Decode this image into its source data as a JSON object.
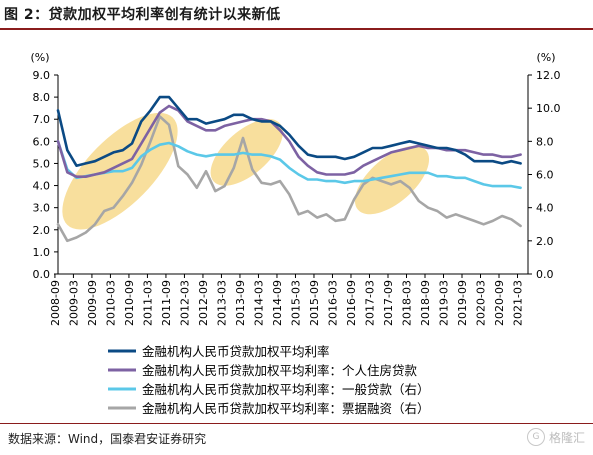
{
  "title": "图 2：贷款加权平均利率创有统计以来新低",
  "source": "数据来源：Wind，国泰君安证券研究",
  "watermark": {
    "brand": "格隆汇",
    "logo_letter": "G"
  },
  "colors": {
    "s1": "#0b4a84",
    "s2": "#7d62a3",
    "s3": "#5bc8e8",
    "s4": "#a6a6a6",
    "highlight": "#f6d47c",
    "title_rule": "#8a1c1c"
  },
  "chart_data": {
    "type": "line",
    "left_axis": {
      "unit_label": "(%)",
      "ylim": [
        0,
        9
      ],
      "ticks": [
        "0.0",
        "1.0",
        "2.0",
        "3.0",
        "4.0",
        "5.0",
        "6.0",
        "7.0",
        "8.0",
        "9.0"
      ]
    },
    "right_axis": {
      "unit_label": "(%)",
      "ylim": [
        0,
        12
      ],
      "ticks": [
        "0.0",
        "2.0",
        "4.0",
        "6.0",
        "8.0",
        "10.0",
        "12.0"
      ]
    },
    "x_ticks": [
      "2008-09",
      "2009-03",
      "2009-09",
      "2010-03",
      "2010-09",
      "2011-03",
      "2011-09",
      "2012-03",
      "2012-09",
      "2013-03",
      "2013-09",
      "2014-03",
      "2014-09",
      "2015-03",
      "2015-09",
      "2016-03",
      "2016-09",
      "2017-03",
      "2017-09",
      "2018-03",
      "2018-09",
      "2019-03",
      "2019-09",
      "2020-03",
      "2020-09",
      "2021-03"
    ],
    "legend_position": "bottom",
    "series": [
      {
        "name": "金融机构人民币贷款加权平均利率",
        "axis": "left",
        "color": "#0b4a84",
        "values": [
          [
            2008.75,
            7.4
          ],
          [
            2009.0,
            5.6
          ],
          [
            2009.25,
            4.9
          ],
          [
            2009.5,
            5.0
          ],
          [
            2009.75,
            5.1
          ],
          [
            2010.0,
            5.3
          ],
          [
            2010.25,
            5.5
          ],
          [
            2010.5,
            5.6
          ],
          [
            2010.75,
            5.9
          ],
          [
            2011.0,
            6.9
          ],
          [
            2011.25,
            7.4
          ],
          [
            2011.5,
            8.0
          ],
          [
            2011.75,
            8.0
          ],
          [
            2012.0,
            7.5
          ],
          [
            2012.25,
            7.0
          ],
          [
            2012.5,
            7.0
          ],
          [
            2012.75,
            6.8
          ],
          [
            2013.0,
            6.9
          ],
          [
            2013.25,
            7.0
          ],
          [
            2013.5,
            7.2
          ],
          [
            2013.75,
            7.2
          ],
          [
            2014.0,
            7.0
          ],
          [
            2014.25,
            6.9
          ],
          [
            2014.5,
            6.9
          ],
          [
            2014.75,
            6.7
          ],
          [
            2015.0,
            6.3
          ],
          [
            2015.25,
            5.8
          ],
          [
            2015.5,
            5.4
          ],
          [
            2015.75,
            5.3
          ],
          [
            2016.0,
            5.3
          ],
          [
            2016.25,
            5.3
          ],
          [
            2016.5,
            5.2
          ],
          [
            2016.75,
            5.3
          ],
          [
            2017.0,
            5.5
          ],
          [
            2017.25,
            5.7
          ],
          [
            2017.5,
            5.7
          ],
          [
            2017.75,
            5.8
          ],
          [
            2018.0,
            5.9
          ],
          [
            2018.25,
            6.0
          ],
          [
            2018.5,
            5.9
          ],
          [
            2018.75,
            5.8
          ],
          [
            2019.0,
            5.7
          ],
          [
            2019.25,
            5.7
          ],
          [
            2019.5,
            5.6
          ],
          [
            2019.75,
            5.4
          ],
          [
            2020.0,
            5.1
          ],
          [
            2020.25,
            5.1
          ],
          [
            2020.5,
            5.1
          ],
          [
            2020.75,
            5.0
          ],
          [
            2021.0,
            5.1
          ],
          [
            2021.25,
            5.0
          ]
        ]
      },
      {
        "name": "金融机构人民币贷款加权平均利率：个人住房贷款",
        "axis": "left",
        "color": "#7d62a3",
        "values": [
          [
            2008.75,
            6.0
          ],
          [
            2009.0,
            4.6
          ],
          [
            2009.25,
            4.4
          ],
          [
            2009.5,
            4.4
          ],
          [
            2009.75,
            4.5
          ],
          [
            2010.0,
            4.6
          ],
          [
            2010.25,
            4.8
          ],
          [
            2010.5,
            5.0
          ],
          [
            2010.75,
            5.2
          ],
          [
            2011.0,
            5.9
          ],
          [
            2011.25,
            6.6
          ],
          [
            2011.5,
            7.3
          ],
          [
            2011.75,
            7.6
          ],
          [
            2012.0,
            7.4
          ],
          [
            2012.25,
            6.9
          ],
          [
            2012.5,
            6.7
          ],
          [
            2012.75,
            6.5
          ],
          [
            2013.0,
            6.5
          ],
          [
            2013.25,
            6.7
          ],
          [
            2013.5,
            6.8
          ],
          [
            2013.75,
            6.9
          ],
          [
            2014.0,
            7.0
          ],
          [
            2014.25,
            7.0
          ],
          [
            2014.5,
            6.9
          ],
          [
            2014.75,
            6.5
          ],
          [
            2015.0,
            6.0
          ],
          [
            2015.25,
            5.3
          ],
          [
            2015.5,
            4.9
          ],
          [
            2015.75,
            4.6
          ],
          [
            2016.0,
            4.5
          ],
          [
            2016.25,
            4.5
          ],
          [
            2016.5,
            4.5
          ],
          [
            2016.75,
            4.6
          ],
          [
            2017.0,
            4.9
          ],
          [
            2017.25,
            5.1
          ],
          [
            2017.5,
            5.3
          ],
          [
            2017.75,
            5.5
          ],
          [
            2018.0,
            5.6
          ],
          [
            2018.25,
            5.7
          ],
          [
            2018.5,
            5.8
          ],
          [
            2018.75,
            5.7
          ],
          [
            2019.0,
            5.7
          ],
          [
            2019.25,
            5.6
          ],
          [
            2019.5,
            5.6
          ],
          [
            2019.75,
            5.6
          ],
          [
            2020.0,
            5.5
          ],
          [
            2020.25,
            5.4
          ],
          [
            2020.5,
            5.4
          ],
          [
            2020.75,
            5.3
          ],
          [
            2021.0,
            5.3
          ],
          [
            2021.25,
            5.4
          ]
        ]
      },
      {
        "name": "金融机构人民币贷款加权平均利率：一般贷款（右）",
        "axis": "right",
        "color": "#5bc8e8",
        "values": [
          [
            2008.75,
            8.0
          ],
          [
            2009.0,
            6.3
          ],
          [
            2009.25,
            5.8
          ],
          [
            2009.5,
            5.9
          ],
          [
            2009.75,
            6.0
          ],
          [
            2010.0,
            6.1
          ],
          [
            2010.25,
            6.2
          ],
          [
            2010.5,
            6.2
          ],
          [
            2010.75,
            6.4
          ],
          [
            2011.0,
            7.1
          ],
          [
            2011.25,
            7.5
          ],
          [
            2011.5,
            7.8
          ],
          [
            2011.75,
            7.9
          ],
          [
            2012.0,
            7.7
          ],
          [
            2012.25,
            7.4
          ],
          [
            2012.5,
            7.2
          ],
          [
            2012.75,
            7.1
          ],
          [
            2013.0,
            7.2
          ],
          [
            2013.25,
            7.2
          ],
          [
            2013.5,
            7.2
          ],
          [
            2013.75,
            7.3
          ],
          [
            2014.0,
            7.2
          ],
          [
            2014.25,
            7.2
          ],
          [
            2014.5,
            7.1
          ],
          [
            2014.75,
            6.9
          ],
          [
            2015.0,
            6.4
          ],
          [
            2015.25,
            6.0
          ],
          [
            2015.5,
            5.7
          ],
          [
            2015.75,
            5.7
          ],
          [
            2016.0,
            5.6
          ],
          [
            2016.25,
            5.6
          ],
          [
            2016.5,
            5.5
          ],
          [
            2016.75,
            5.6
          ],
          [
            2017.0,
            5.6
          ],
          [
            2017.25,
            5.7
          ],
          [
            2017.5,
            5.8
          ],
          [
            2017.75,
            5.9
          ],
          [
            2018.0,
            6.0
          ],
          [
            2018.25,
            6.1
          ],
          [
            2018.5,
            6.1
          ],
          [
            2018.75,
            6.1
          ],
          [
            2019.0,
            5.9
          ],
          [
            2019.25,
            5.9
          ],
          [
            2019.5,
            5.8
          ],
          [
            2019.75,
            5.8
          ],
          [
            2020.0,
            5.6
          ],
          [
            2020.25,
            5.4
          ],
          [
            2020.5,
            5.3
          ],
          [
            2020.75,
            5.3
          ],
          [
            2021.0,
            5.3
          ],
          [
            2021.25,
            5.2
          ]
        ]
      },
      {
        "name": "金融机构人民币贷款加权平均利率：票据融资（右）",
        "axis": "right",
        "color": "#a6a6a6",
        "values": [
          [
            2008.75,
            3.0
          ],
          [
            2009.0,
            2.0
          ],
          [
            2009.25,
            2.2
          ],
          [
            2009.5,
            2.5
          ],
          [
            2009.75,
            3.0
          ],
          [
            2010.0,
            3.8
          ],
          [
            2010.25,
            4.0
          ],
          [
            2010.5,
            4.7
          ],
          [
            2010.75,
            5.5
          ],
          [
            2011.0,
            6.6
          ],
          [
            2011.25,
            8.0
          ],
          [
            2011.5,
            9.5
          ],
          [
            2011.75,
            9.0
          ],
          [
            2012.0,
            6.5
          ],
          [
            2012.25,
            6.0
          ],
          [
            2012.5,
            5.2
          ],
          [
            2012.75,
            6.2
          ],
          [
            2013.0,
            5.0
          ],
          [
            2013.25,
            5.3
          ],
          [
            2013.5,
            6.4
          ],
          [
            2013.75,
            8.2
          ],
          [
            2014.0,
            6.3
          ],
          [
            2014.25,
            5.5
          ],
          [
            2014.5,
            5.4
          ],
          [
            2014.75,
            5.6
          ],
          [
            2015.0,
            4.8
          ],
          [
            2015.25,
            3.6
          ],
          [
            2015.5,
            3.8
          ],
          [
            2015.75,
            3.4
          ],
          [
            2016.0,
            3.6
          ],
          [
            2016.25,
            3.2
          ],
          [
            2016.5,
            3.3
          ],
          [
            2016.75,
            4.5
          ],
          [
            2017.0,
            5.4
          ],
          [
            2017.25,
            5.8
          ],
          [
            2017.5,
            5.6
          ],
          [
            2017.75,
            5.4
          ],
          [
            2018.0,
            5.6
          ],
          [
            2018.25,
            5.2
          ],
          [
            2018.5,
            4.4
          ],
          [
            2018.75,
            4.0
          ],
          [
            2019.0,
            3.8
          ],
          [
            2019.25,
            3.4
          ],
          [
            2019.5,
            3.6
          ],
          [
            2019.75,
            3.4
          ],
          [
            2020.0,
            3.2
          ],
          [
            2020.25,
            3.0
          ],
          [
            2020.5,
            3.2
          ],
          [
            2020.75,
            3.5
          ],
          [
            2021.0,
            3.3
          ],
          [
            2021.25,
            2.9
          ]
        ]
      }
    ],
    "highlights": [
      {
        "from": 2009.0,
        "to": 2011.85,
        "y_low": 1.0,
        "y_high": 8.3
      },
      {
        "from": 2012.9,
        "to": 2014.8,
        "y_low": 3.5,
        "y_high": 7.5
      },
      {
        "from": 2016.8,
        "to": 2018.75,
        "y_low": 2.2,
        "y_high": 6.3
      }
    ]
  }
}
